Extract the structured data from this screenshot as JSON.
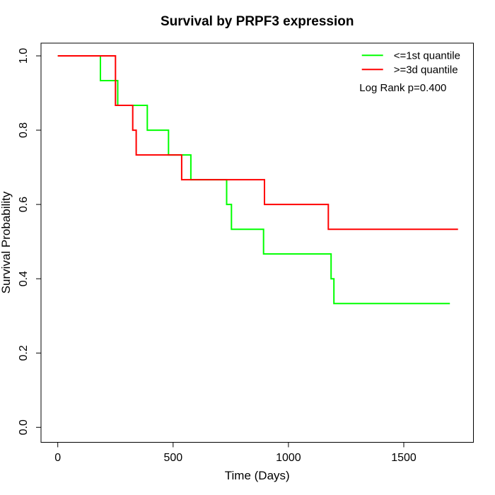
{
  "title": "Survival by PRPF3 expression",
  "legend": {
    "entries": [
      {
        "label": "<=1st quantile",
        "color": "#00FF00"
      },
      {
        "label": ">=3d quantile",
        "color": "#FF0000"
      }
    ],
    "note": "Log Rank p=0.400"
  },
  "chart_data": {
    "type": "line",
    "subtype": "kaplan-meier-step-curves",
    "title": "Survival by PRPF3 expression",
    "xlabel": "Time (Days)",
    "ylabel": "Survival Probability",
    "xlim": [
      0,
      1800
    ],
    "ylim": [
      0.0,
      1.0
    ],
    "grid": false,
    "legend_position": "top-right",
    "annotation": "Log Rank p=0.400",
    "x_tick_values": [
      0,
      500,
      1000,
      1500
    ],
    "x_tick_labels": [
      "0",
      "500",
      "1000",
      "1500"
    ],
    "y_tick_values": [
      0.0,
      0.2,
      0.4,
      0.6,
      0.8,
      1.0
    ],
    "y_tick_labels": [
      "0.0",
      "0.2",
      "0.4",
      "0.6",
      "0.8",
      "1.0"
    ],
    "series": [
      {
        "name": "<=1st quantile",
        "color": "#00FF00",
        "start": [
          0,
          1.0
        ],
        "steps": [
          [
            185,
            0.9333
          ],
          [
            260,
            0.8667
          ],
          [
            388,
            0.8
          ],
          [
            480,
            0.7333
          ],
          [
            577,
            0.6667
          ],
          [
            732,
            0.6
          ],
          [
            753,
            0.5333
          ],
          [
            892,
            0.4667
          ],
          [
            1185,
            0.4
          ],
          [
            1197,
            0.3333
          ]
        ],
        "end_time": 1700,
        "final_survival": 0.3333
      },
      {
        "name": ">=3d quantile",
        "color": "#FF0000",
        "start": [
          0,
          1.0
        ],
        "steps": [
          [
            250,
            0.8667
          ],
          [
            325,
            0.8
          ],
          [
            340,
            0.7333
          ],
          [
            537,
            0.6667
          ],
          [
            896,
            0.6
          ],
          [
            1173,
            0.5333
          ]
        ],
        "end_time": 1735,
        "final_survival": 0.5333
      }
    ]
  }
}
